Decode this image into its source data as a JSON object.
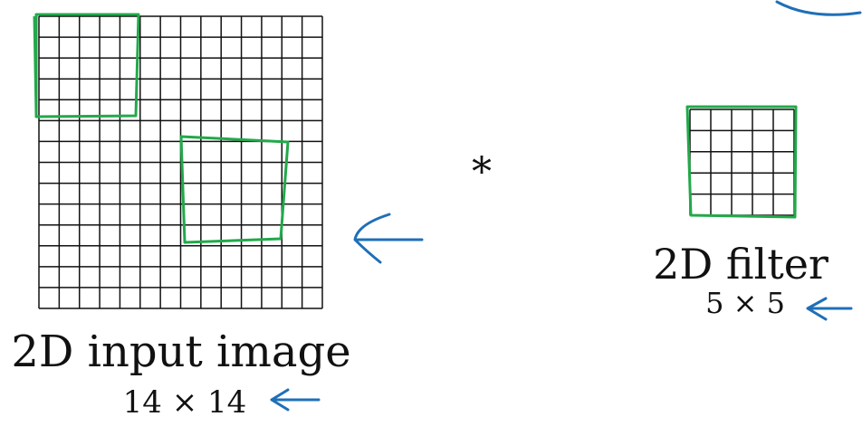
{
  "input": {
    "title": "2D input image",
    "size_label": "14 × 14",
    "rows": 14,
    "cols": 14
  },
  "operator": {
    "symbol": "*"
  },
  "filter": {
    "title": "2D filter",
    "size_label": "5 × 5",
    "rows": 5,
    "cols": 5
  },
  "colors": {
    "grid": "#111111",
    "highlight": "#22a94a",
    "annotation": "#1f6fb8"
  }
}
